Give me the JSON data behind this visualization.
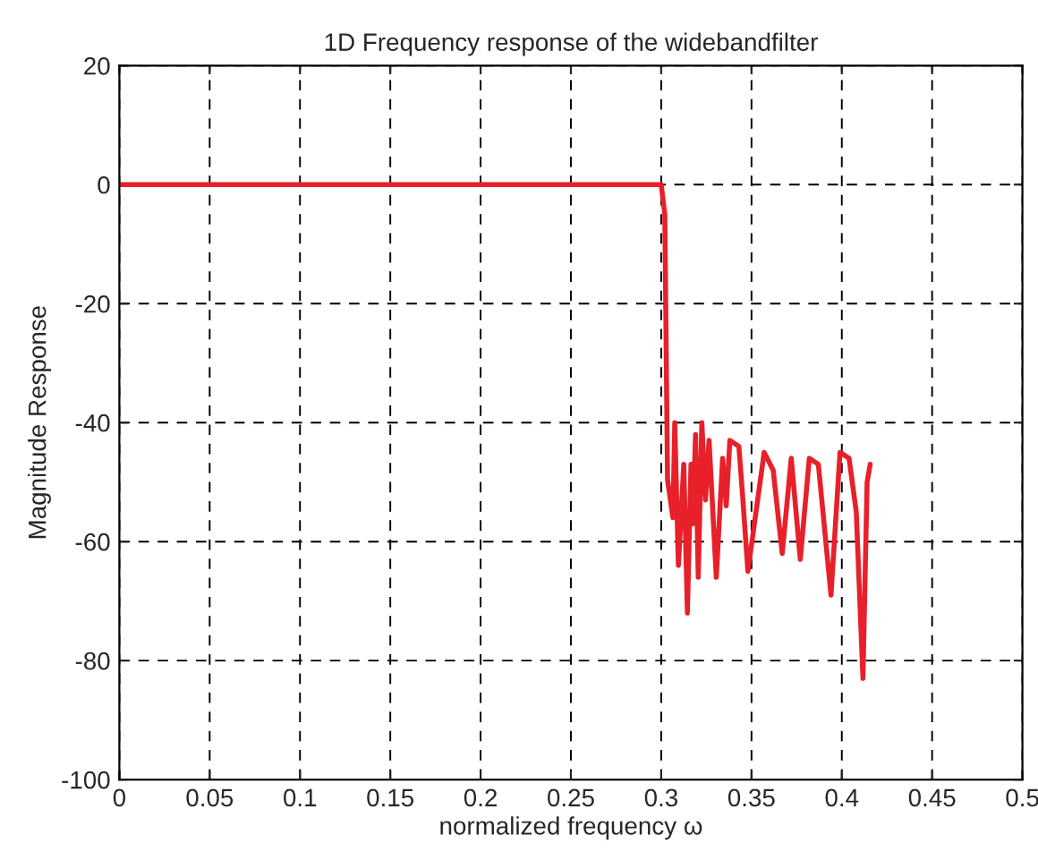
{
  "chart_data": {
    "type": "line",
    "title": "1D Frequency response of the widebandfilter",
    "xlabel": "normalized frequency ω",
    "ylabel": "Magnitude Response",
    "series": [
      {
        "color": "#e8202a",
        "x": [
          0,
          0.05,
          0.1,
          0.15,
          0.2,
          0.25,
          0.3,
          0.302,
          0.3035,
          0.3065,
          0.3075,
          0.3095,
          0.3125,
          0.3145,
          0.3165,
          0.3175,
          0.319,
          0.3205,
          0.3225,
          0.3245,
          0.3265,
          0.3305,
          0.334,
          0.336,
          0.338,
          0.343,
          0.345,
          0.348,
          0.357,
          0.362,
          0.367,
          0.372,
          0.377,
          0.382,
          0.387,
          0.394,
          0.399,
          0.404,
          0.408,
          0.4117,
          0.414,
          0.4157
        ],
        "values": [
          0,
          0,
          0,
          0,
          0,
          0,
          0,
          -5,
          -49.6,
          -56,
          -40,
          -64,
          -47,
          -72,
          -47,
          -57,
          -42,
          -66,
          -40,
          -53,
          -43,
          -66,
          -46,
          -54,
          -43,
          -44,
          -52,
          -65,
          -45,
          -48,
          -62,
          -46,
          -63,
          -46,
          -47,
          -69,
          -45,
          -46,
          -55,
          -83,
          -50,
          -47
        ]
      }
    ],
    "xlim": [
      0,
      0.5
    ],
    "ylim": [
      -100,
      20
    ],
    "xticks": [
      0,
      0.05,
      0.1,
      0.15,
      0.2,
      0.25,
      0.3,
      0.35,
      0.4,
      0.45,
      0.5
    ],
    "yticks": [
      -100,
      -80,
      -60,
      -40,
      -20,
      0,
      20
    ],
    "grid": true,
    "line_style": "solid"
  }
}
